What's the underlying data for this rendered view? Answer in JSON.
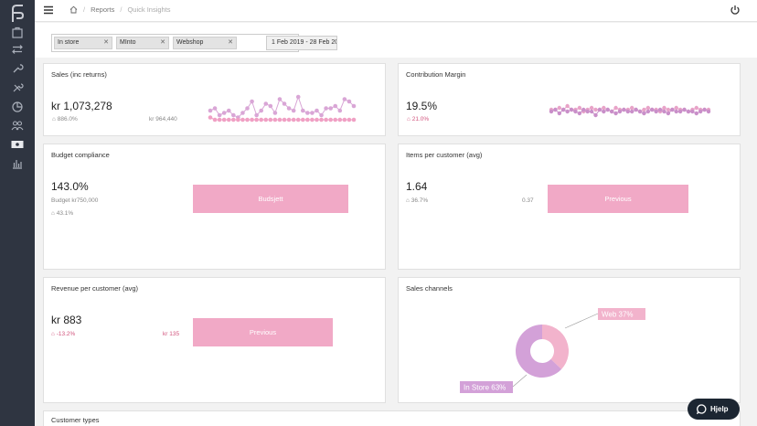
{
  "breadcrumb": {
    "reports": "Reports",
    "current": "Quick Insights"
  },
  "filters": {
    "chips": [
      {
        "label": "In store"
      },
      {
        "label": "MInto"
      },
      {
        "label": "Webshop"
      }
    ],
    "date_range": "1 Feb 2019 - 28 Feb 20"
  },
  "cards": {
    "sales": {
      "title": "Sales (inc returns)",
      "value": "kr 1,073,278",
      "change": "886.0%",
      "compare": "kr 964,440"
    },
    "margin": {
      "title": "Contribution Margin",
      "value": "19.5%",
      "change": "21.0%"
    },
    "budget": {
      "title": "Budget compliance",
      "value": "143.0%",
      "budget_label": "Budget kr750,000",
      "change": "43.1%",
      "button": "Budsjett"
    },
    "items": {
      "title": "Items per customer (avg)",
      "value": "1.64",
      "change": "36.7%",
      "compare": "0.37",
      "button": "Previous"
    },
    "revenue": {
      "title": "Revenue per customer (avg)",
      "value": "kr 883",
      "change": "-13.2%",
      "compare": "kr 135",
      "button": "Previous"
    },
    "channels": {
      "title": "Sales channels",
      "web_label": "Web 37%",
      "store_label": "In Store 63%"
    },
    "customer_types": {
      "title": "Customer types"
    }
  },
  "help": {
    "label": "Hjelp"
  },
  "colors": {
    "sidebar": "#2f3541",
    "accent_pink": "#f1a9c6",
    "purple": "#c9a3d6",
    "pink_dark": "#d2557e"
  },
  "icons": [
    "logo-icon",
    "bag-icon",
    "transfer-icon",
    "wrench-icon",
    "tools-icon",
    "pie-icon",
    "users-icon",
    "cash-icon",
    "bar-chart-icon"
  ],
  "chart_data": [
    {
      "type": "line",
      "series": [
        {
          "values": [
            6,
            7,
            4,
            5,
            6,
            4,
            3,
            5,
            7,
            10,
            4,
            6,
            9,
            8,
            5,
            11,
            9,
            7,
            6,
            12,
            6,
            5,
            5,
            6,
            4,
            7,
            7,
            8,
            6,
            11,
            10,
            8
          ]
        },
        {
          "values": [
            3,
            2,
            2,
            2,
            2,
            2,
            2,
            2,
            2,
            2,
            2,
            2,
            2,
            2,
            2,
            2,
            2,
            2,
            2,
            2,
            2,
            2,
            2,
            2,
            2,
            2,
            2,
            2,
            2,
            2,
            2,
            2
          ]
        }
      ]
    },
    {
      "type": "line",
      "series": [
        {
          "values": [
            5,
            5,
            6,
            5,
            7,
            5,
            5,
            6,
            4,
            5,
            6,
            5,
            5,
            6,
            5,
            4,
            6,
            5,
            5,
            5,
            6,
            5,
            4,
            5,
            6,
            5,
            5,
            4,
            6,
            5,
            5,
            6,
            5,
            5,
            4,
            5,
            6,
            5,
            5,
            5
          ]
        },
        {
          "values": [
            4,
            5,
            3,
            5,
            4,
            5,
            4,
            3,
            5,
            4,
            4,
            2,
            5,
            4,
            5,
            4,
            3,
            4,
            5,
            4,
            4,
            5,
            4,
            3,
            4,
            5,
            4,
            5,
            4,
            3,
            5,
            4,
            4,
            5,
            4,
            4,
            3,
            4,
            5,
            4
          ]
        }
      ]
    },
    {
      "type": "pie",
      "categories": [
        "Web",
        "In Store"
      ],
      "values": [
        37,
        63
      ]
    }
  ]
}
